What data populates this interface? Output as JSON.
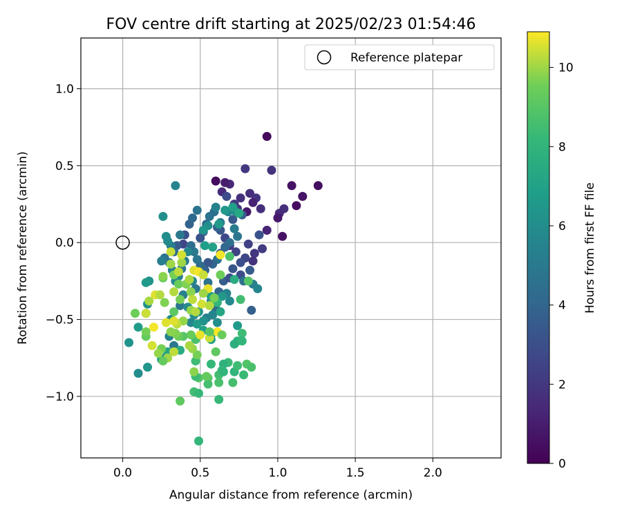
{
  "chart_data": {
    "type": "scatter",
    "title": "FOV centre drift starting at 2025/02/23 01:54:46",
    "xlabel": "Angular distance from reference (arcmin)",
    "ylabel": "Rotation from reference (arcmin)",
    "xlim": [
      -0.27,
      2.44
    ],
    "ylim": [
      -1.4,
      1.33
    ],
    "x_ticks": [
      0.0,
      0.5,
      1.0,
      1.5,
      2.0
    ],
    "x_tick_labels": [
      "0.0",
      "0.5",
      "1.0",
      "1.5",
      "2.0"
    ],
    "y_ticks": [
      -1.0,
      -0.5,
      0.0,
      0.5,
      1.0
    ],
    "y_tick_labels": [
      "−1.0",
      "−0.5",
      "0.0",
      "0.5",
      "1.0"
    ],
    "grid": true,
    "legend": {
      "position": "upper-right",
      "entries": [
        "Reference platepar"
      ]
    },
    "reference_point": {
      "x": 0.0,
      "y": 0.0,
      "label": "Reference platepar"
    },
    "colorbar": {
      "label": "Hours from first FF file",
      "range": [
        0,
        10.9
      ],
      "ticks": [
        0,
        2,
        4,
        6,
        8,
        10
      ],
      "tick_labels": [
        "0",
        "2",
        "4",
        "6",
        "8",
        "10"
      ],
      "colormap": "viridis"
    },
    "points": [
      [
        0.93,
        0.69,
        0.3
      ],
      [
        0.96,
        0.47,
        1.8
      ],
      [
        0.79,
        0.48,
        2.0
      ],
      [
        1.09,
        0.37,
        0.6
      ],
      [
        1.26,
        0.37,
        0.5
      ],
      [
        1.16,
        0.3,
        0.7
      ],
      [
        1.12,
        0.24,
        0.4
      ],
      [
        1.04,
        0.22,
        1.7
      ],
      [
        1.01,
        0.19,
        1.5
      ],
      [
        1.0,
        0.16,
        0.8
      ],
      [
        1.03,
        0.04,
        0.6
      ],
      [
        0.93,
        0.08,
        1.3
      ],
      [
        0.89,
        0.22,
        1.6
      ],
      [
        0.86,
        0.29,
        1.9
      ],
      [
        0.84,
        0.26,
        1.2
      ],
      [
        0.82,
        0.32,
        1.6
      ],
      [
        0.8,
        0.2,
        0.8
      ],
      [
        0.76,
        0.29,
        1.7
      ],
      [
        0.74,
        0.22,
        2.0
      ],
      [
        0.72,
        0.25,
        2.1
      ],
      [
        0.69,
        0.38,
        1.4
      ],
      [
        0.66,
        0.39,
        1.0
      ],
      [
        0.64,
        0.33,
        1.5
      ],
      [
        0.6,
        0.4,
        0.4
      ],
      [
        0.67,
        0.3,
        2.8
      ],
      [
        0.71,
        0.15,
        3.4
      ],
      [
        0.77,
        0.18,
        3.6
      ],
      [
        0.81,
        -0.01,
        2.4
      ],
      [
        0.88,
        0.05,
        3.1
      ],
      [
        0.9,
        -0.04,
        2.2
      ],
      [
        0.85,
        -0.07,
        2.0
      ],
      [
        0.84,
        -0.12,
        1.8
      ],
      [
        0.79,
        -0.1,
        2.6
      ],
      [
        0.76,
        -0.13,
        3.0
      ],
      [
        0.73,
        -0.06,
        2.5
      ],
      [
        0.69,
        -0.02,
        2.1
      ],
      [
        0.66,
        0.03,
        2.7
      ],
      [
        0.63,
        0.08,
        3.3
      ],
      [
        0.61,
        0.1,
        3.8
      ],
      [
        0.59,
        0.2,
        4.4
      ],
      [
        0.56,
        0.17,
        4.6
      ],
      [
        0.54,
        0.12,
        4.0
      ],
      [
        0.52,
        0.07,
        3.6
      ],
      [
        0.5,
        0.03,
        3.2
      ],
      [
        0.48,
        0.21,
        4.7
      ],
      [
        0.45,
        0.16,
        4.2
      ],
      [
        0.43,
        0.12,
        3.9
      ],
      [
        0.4,
        0.05,
        3.0
      ],
      [
        0.39,
        -0.01,
        2.6
      ],
      [
        0.37,
        0.05,
        4.9
      ],
      [
        0.35,
        -0.02,
        3.5
      ],
      [
        0.33,
        -0.06,
        4.3
      ],
      [
        0.31,
        -0.02,
        5.3
      ],
      [
        0.29,
        0.01,
        5.8
      ],
      [
        0.28,
        0.04,
        6.0
      ],
      [
        0.26,
        0.17,
        6.1
      ],
      [
        0.34,
        0.37,
        5.5
      ],
      [
        0.6,
        0.23,
        5.4
      ],
      [
        0.63,
        0.13,
        5.2
      ],
      [
        0.68,
        0.2,
        5.6
      ],
      [
        0.73,
        0.2,
        5.9
      ],
      [
        0.72,
        0.09,
        5.1
      ],
      [
        0.74,
        0.04,
        4.8
      ],
      [
        0.69,
        0.0,
        4.5
      ],
      [
        0.66,
        -0.03,
        4.1
      ],
      [
        0.63,
        -0.07,
        3.7
      ],
      [
        0.61,
        -0.11,
        4.6
      ],
      [
        0.58,
        -0.14,
        4.0
      ],
      [
        0.55,
        -0.13,
        3.4
      ],
      [
        0.53,
        -0.18,
        3.9
      ],
      [
        0.5,
        -0.15,
        4.3
      ],
      [
        0.48,
        -0.11,
        4.8
      ],
      [
        0.46,
        -0.06,
        5.0
      ],
      [
        0.44,
        -0.02,
        4.4
      ],
      [
        0.42,
        -0.06,
        5.7
      ],
      [
        0.4,
        -0.12,
        5.2
      ],
      [
        0.38,
        -0.17,
        4.9
      ],
      [
        0.36,
        -0.22,
        5.3
      ],
      [
        0.34,
        -0.25,
        5.8
      ],
      [
        0.32,
        -0.18,
        5.4
      ],
      [
        0.3,
        -0.13,
        4.7
      ],
      [
        0.27,
        -0.1,
        4.6
      ],
      [
        0.25,
        -0.12,
        5.2
      ],
      [
        0.45,
        -0.25,
        5.6
      ],
      [
        0.47,
        -0.3,
        5.0
      ],
      [
        0.41,
        -0.27,
        4.5
      ],
      [
        0.39,
        -0.34,
        5.3
      ],
      [
        0.37,
        -0.41,
        4.8
      ],
      [
        0.42,
        -0.42,
        5.9
      ],
      [
        0.55,
        -0.26,
        4.6
      ],
      [
        0.57,
        -0.38,
        5.1
      ],
      [
        0.6,
        -0.43,
        4.2
      ],
      [
        0.62,
        -0.32,
        4.0
      ],
      [
        0.65,
        -0.25,
        3.6
      ],
      [
        0.69,
        -0.23,
        3.0
      ],
      [
        0.71,
        -0.17,
        3.3
      ],
      [
        0.76,
        -0.21,
        2.9
      ],
      [
        0.78,
        -0.25,
        4.5
      ],
      [
        0.82,
        -0.18,
        3.5
      ],
      [
        0.84,
        -0.27,
        5.2
      ],
      [
        0.87,
        -0.3,
        5.6
      ],
      [
        0.83,
        -0.44,
        3.7
      ],
      [
        0.67,
        -0.33,
        5.5
      ],
      [
        0.69,
        -0.38,
        5.8
      ],
      [
        0.58,
        -0.47,
        5.6
      ],
      [
        0.61,
        -0.52,
        6.1
      ],
      [
        0.54,
        -0.49,
        5.4
      ],
      [
        0.52,
        -0.51,
        6.2
      ],
      [
        0.49,
        -0.45,
        6.5
      ],
      [
        0.46,
        -0.47,
        6.0
      ],
      [
        0.44,
        -0.52,
        5.7
      ],
      [
        0.33,
        -0.67,
        4.9
      ],
      [
        0.3,
        -0.61,
        5.4
      ],
      [
        0.27,
        -0.75,
        5.1
      ],
      [
        0.31,
        -0.5,
        6.0
      ],
      [
        0.17,
        -0.25,
        6.3
      ],
      [
        0.15,
        -0.26,
        6.6
      ],
      [
        0.16,
        -0.4,
        6.2
      ],
      [
        0.16,
        -0.81,
        6.4
      ],
      [
        0.1,
        -0.85,
        6.0
      ],
      [
        0.04,
        -0.65,
        6.3
      ],
      [
        0.1,
        -0.55,
        6.7
      ],
      [
        0.15,
        -0.46,
        6.9
      ],
      [
        0.55,
        0.11,
        6.0
      ],
      [
        0.52,
        0.08,
        6.4
      ],
      [
        0.53,
        -0.02,
        6.8
      ],
      [
        0.58,
        -0.03,
        7.0
      ],
      [
        0.62,
        0.12,
        6.6
      ],
      [
        0.66,
        0.21,
        6.5
      ],
      [
        0.71,
        0.23,
        6.9
      ],
      [
        0.75,
        0.19,
        7.3
      ],
      [
        0.57,
        -0.35,
        6.9
      ],
      [
        0.64,
        -0.35,
        6.5
      ],
      [
        0.63,
        -0.45,
        7.2
      ],
      [
        0.57,
        -0.6,
        7.1
      ],
      [
        0.57,
        -0.63,
        6.8
      ],
      [
        0.52,
        -0.57,
        7.0
      ],
      [
        0.48,
        -0.53,
        6.7
      ],
      [
        0.37,
        -0.7,
        7.5
      ],
      [
        0.29,
        -0.71,
        7.2
      ],
      [
        0.25,
        -0.76,
        6.9
      ],
      [
        0.74,
        -0.54,
        6.6
      ],
      [
        0.74,
        -0.64,
        7.9
      ],
      [
        0.77,
        -0.59,
        8.4
      ],
      [
        0.77,
        -0.64,
        8.1
      ],
      [
        0.72,
        -0.66,
        7.7
      ],
      [
        0.68,
        -0.78,
        8.3
      ],
      [
        0.65,
        -0.79,
        7.8
      ],
      [
        0.64,
        -0.83,
        8.1
      ],
      [
        0.62,
        -0.86,
        8.5
      ],
      [
        0.62,
        -0.91,
        8.7
      ],
      [
        0.65,
        -0.84,
        8.0
      ],
      [
        0.57,
        -0.79,
        8.2
      ],
      [
        0.55,
        -0.88,
        9.0
      ],
      [
        0.55,
        -0.92,
        8.6
      ],
      [
        0.49,
        -0.88,
        8.9
      ],
      [
        0.47,
        -0.87,
        8.3
      ],
      [
        0.46,
        -0.97,
        8.5
      ],
      [
        0.49,
        -0.98,
        8.2
      ],
      [
        0.47,
        -0.77,
        8.4
      ],
      [
        0.47,
        -0.63,
        8.7
      ],
      [
        0.49,
        -1.29,
        8.1
      ],
      [
        0.37,
        -1.03,
        9.2
      ],
      [
        0.72,
        -0.84,
        8.0
      ],
      [
        0.71,
        -0.91,
        8.6
      ],
      [
        0.74,
        -0.8,
        8.4
      ],
      [
        0.78,
        -0.86,
        8.3
      ],
      [
        0.8,
        -0.79,
        8.9
      ],
      [
        0.83,
        -0.81,
        8.7
      ],
      [
        0.62,
        -1.02,
        8.2
      ],
      [
        0.72,
        -0.24,
        7.6
      ],
      [
        0.76,
        -0.37,
        8.5
      ],
      [
        0.81,
        -0.25,
        9.0
      ],
      [
        0.69,
        -0.09,
        8.7
      ],
      [
        0.61,
        -0.39,
        8.0
      ],
      [
        0.6,
        -0.71,
        9.2
      ],
      [
        0.48,
        -0.73,
        9.6
      ],
      [
        0.45,
        -0.69,
        9.9
      ],
      [
        0.46,
        -0.84,
        9.8
      ],
      [
        0.44,
        -0.6,
        9.4
      ],
      [
        0.39,
        -0.61,
        9.0
      ],
      [
        0.36,
        -0.61,
        9.5
      ],
      [
        0.34,
        -0.59,
        9.7
      ],
      [
        0.31,
        -0.58,
        9.8
      ],
      [
        0.33,
        -0.71,
        10.3
      ],
      [
        0.29,
        -0.75,
        10.0
      ],
      [
        0.26,
        -0.77,
        9.3
      ],
      [
        0.25,
        -0.69,
        9.6
      ],
      [
        0.23,
        -0.72,
        9.9
      ],
      [
        0.19,
        -0.67,
        10.5
      ],
      [
        0.15,
        -0.61,
        9.3
      ],
      [
        0.15,
        -0.58,
        9.6
      ],
      [
        0.08,
        -0.46,
        9.5
      ],
      [
        0.15,
        -0.46,
        10.4
      ],
      [
        0.17,
        -0.38,
        10.1
      ],
      [
        0.21,
        -0.34,
        10.6
      ],
      [
        0.24,
        -0.34,
        10.2
      ],
      [
        0.27,
        -0.39,
        9.7
      ],
      [
        0.26,
        -0.23,
        9.2
      ],
      [
        0.33,
        -0.21,
        9.6
      ],
      [
        0.36,
        -0.19,
        10.3
      ],
      [
        0.38,
        -0.13,
        10.0
      ],
      [
        0.38,
        -0.08,
        10.5
      ],
      [
        0.36,
        -0.27,
        9.4
      ],
      [
        0.41,
        -0.27,
        9.7
      ],
      [
        0.43,
        -0.24,
        10.1
      ],
      [
        0.44,
        -0.32,
        9.8
      ],
      [
        0.45,
        -0.37,
        10.3
      ],
      [
        0.44,
        -0.44,
        9.9
      ],
      [
        0.47,
        -0.45,
        10.2
      ],
      [
        0.46,
        -0.18,
        10.6
      ],
      [
        0.49,
        -0.19,
        10.8
      ],
      [
        0.52,
        -0.21,
        10.4
      ],
      [
        0.55,
        -0.3,
        10.7
      ],
      [
        0.52,
        -0.33,
        10.0
      ],
      [
        0.51,
        -0.4,
        10.5
      ],
      [
        0.56,
        -0.41,
        10.2
      ],
      [
        0.59,
        -0.36,
        9.6
      ],
      [
        0.61,
        -0.58,
        10.9
      ],
      [
        0.56,
        -0.62,
        10.4
      ],
      [
        0.5,
        -0.6,
        10.7
      ],
      [
        0.43,
        -0.67,
        10.1
      ],
      [
        0.39,
        -0.51,
        9.9
      ],
      [
        0.35,
        -0.53,
        10.3
      ],
      [
        0.33,
        -0.51,
        10.6
      ],
      [
        0.37,
        -0.37,
        9.6
      ],
      [
        0.33,
        -0.32,
        10.2
      ],
      [
        0.31,
        -0.14,
        10.0
      ],
      [
        0.31,
        -0.06,
        10.4
      ],
      [
        0.26,
        -0.22,
        9.8
      ],
      [
        0.28,
        -0.52,
        10.6
      ],
      [
        0.33,
        -0.45,
        9.1
      ],
      [
        0.63,
        -0.21,
        9.5
      ],
      [
        0.56,
        -0.58,
        9.0
      ],
      [
        0.54,
        -0.87,
        9.3
      ],
      [
        0.63,
        -0.08,
        10.8
      ],
      [
        0.64,
        -0.6,
        9.4
      ],
      [
        0.2,
        -0.55,
        10.8
      ]
    ]
  }
}
